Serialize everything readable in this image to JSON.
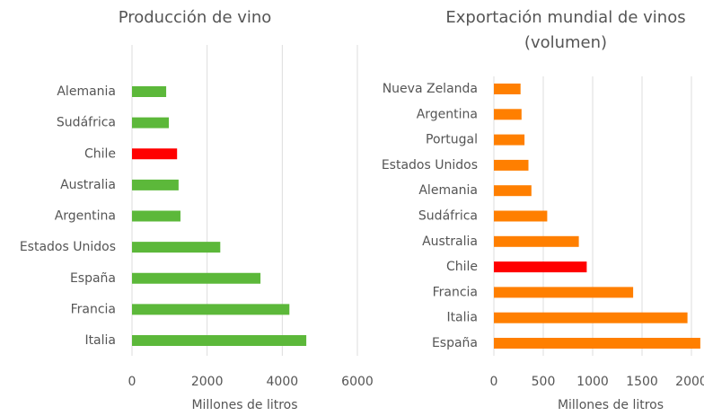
{
  "chart_data": [
    {
      "type": "barh",
      "title": [
        "Producción de vino"
      ],
      "categories": [
        "Alemania",
        "Sudáfrica",
        "Chile",
        "Australia",
        "Argentina",
        "Estados Unidos",
        "España",
        "Francia",
        "Italia"
      ],
      "values": [
        910,
        980,
        1200,
        1240,
        1290,
        2350,
        3420,
        4190,
        4640
      ],
      "colors": [
        "#5cb83a",
        "#5cb83a",
        "#ff0000",
        "#5cb83a",
        "#5cb83a",
        "#5cb83a",
        "#5cb83a",
        "#5cb83a",
        "#5cb83a"
      ],
      "xlim": [
        0,
        6000
      ],
      "xticks": [
        0,
        2000,
        4000,
        6000
      ],
      "xlabel": "Millones de litros",
      "grid": true
    },
    {
      "type": "barh",
      "title": [
        "Exportación mundial de vinos",
        "(volumen)"
      ],
      "categories": [
        "Nueva Zelanda",
        "Argentina",
        "Portugal",
        "Estados Unidos",
        "Alemania",
        "Sudáfrica",
        "Australia",
        "Chile",
        "Francia",
        "Italia",
        "España"
      ],
      "values": [
        270,
        280,
        310,
        350,
        380,
        540,
        860,
        940,
        1410,
        1960,
        2090
      ],
      "colors": [
        "#ff7f00",
        "#ff7f00",
        "#ff7f00",
        "#ff7f00",
        "#ff7f00",
        "#ff7f00",
        "#ff7f00",
        "#ff0000",
        "#ff7f00",
        "#ff7f00",
        "#ff7f00"
      ],
      "xlim": [
        0,
        2100
      ],
      "xticks": [
        0,
        500,
        1000,
        1500,
        2000
      ],
      "xlabel": "Millones de litros",
      "grid": true
    }
  ]
}
